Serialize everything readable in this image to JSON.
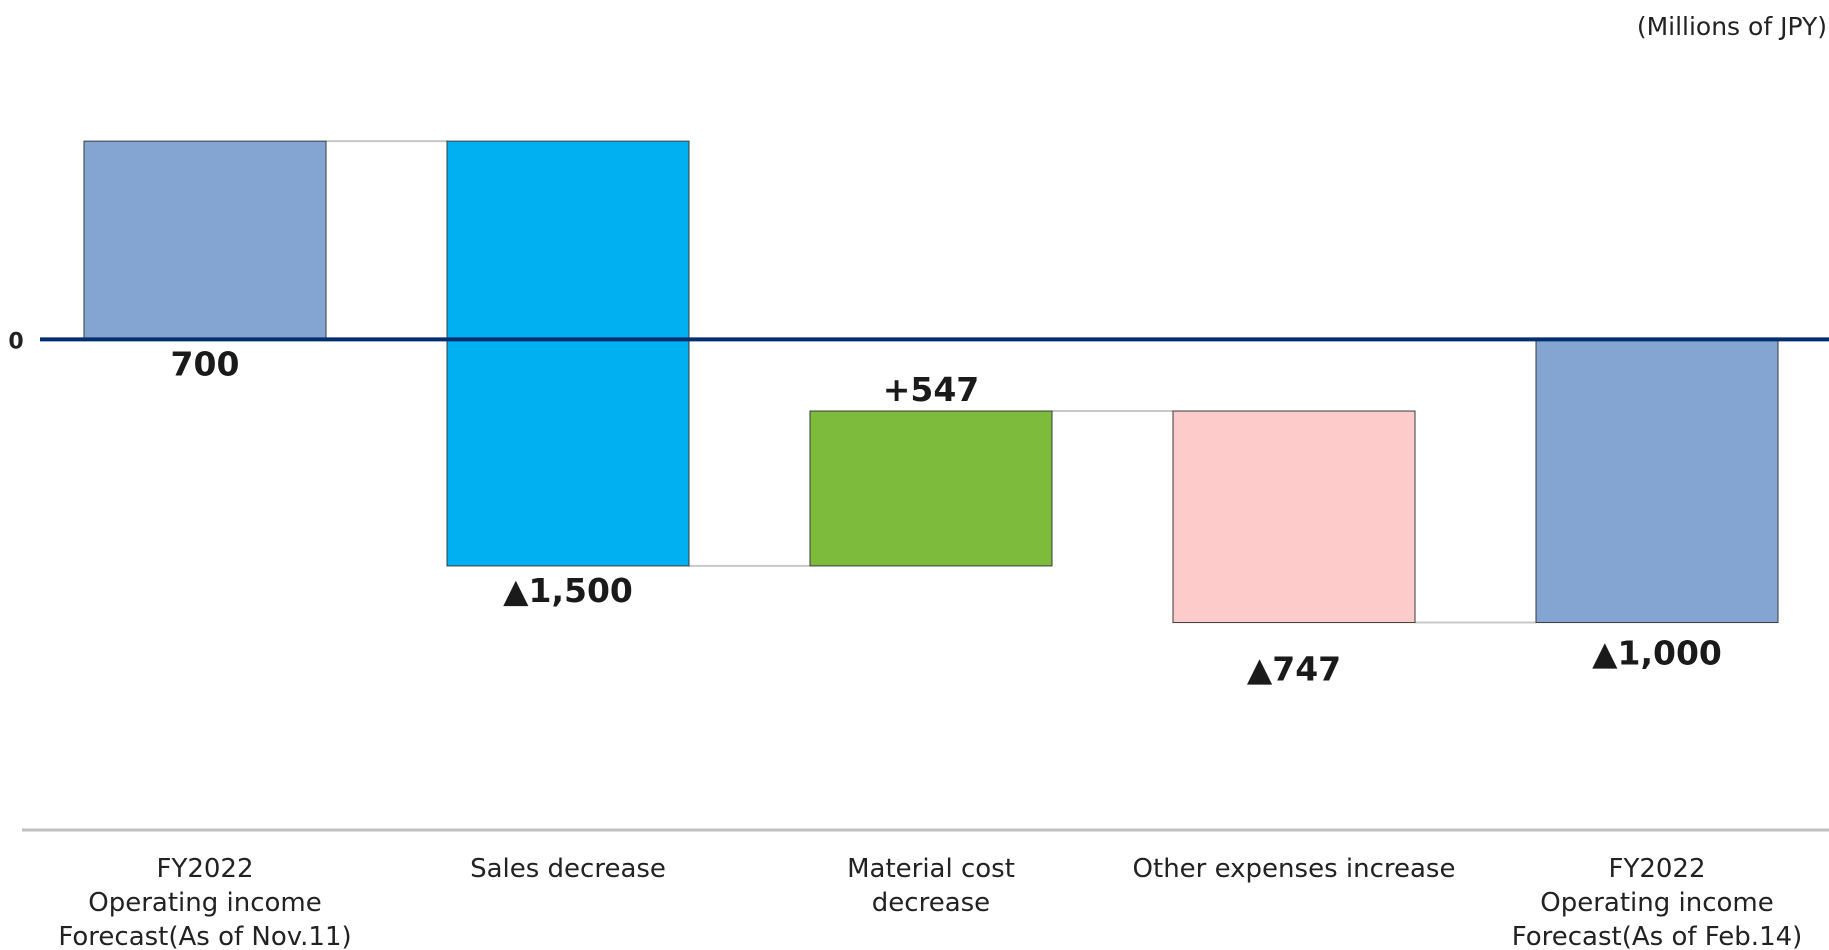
{
  "units_label": "(Millions of JPY)",
  "chart_data": {
    "type": "bar",
    "subtype": "waterfall",
    "title": "",
    "xlabel": "",
    "ylabel": "",
    "zero_tick_label": "0",
    "ylim": [
      -1450,
      1050
    ],
    "categories": [
      [
        "FY2022",
        "Operating income",
        "Forecast(As of Nov.11)"
      ],
      [
        "Sales decrease"
      ],
      [
        "Material cost",
        "decrease"
      ],
      [
        "Other expenses increase"
      ],
      [
        "FY2022",
        "Operating income",
        "Forecast(As of Feb.14)"
      ]
    ],
    "values": [
      700,
      -1500,
      547,
      -747,
      -1000
    ],
    "value_labels": [
      "700",
      "▲1,500",
      "+547",
      "▲747",
      "▲1,000"
    ],
    "bar_kinds": [
      "total",
      "change",
      "change",
      "change",
      "total"
    ],
    "colors": [
      "#84A5D2",
      "#00B0F0",
      "#7CBB3B",
      "#FECBCB",
      "#84A5D2"
    ],
    "zero_line_color": "#002E6F",
    "connector_color": "#C8C8C8",
    "gridlines": false,
    "legend": "none"
  }
}
